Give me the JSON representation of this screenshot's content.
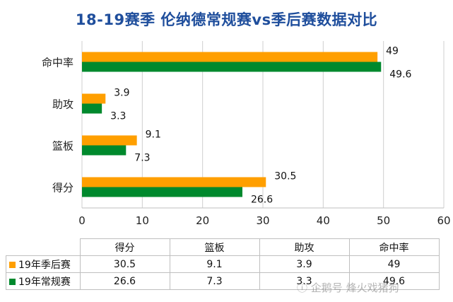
{
  "chart_data": {
    "type": "bar",
    "orientation": "horizontal",
    "title": "18-19赛季 伦纳德常规赛vs季后赛数据对比",
    "categories": [
      "得分",
      "篮板",
      "助攻",
      "命中率"
    ],
    "series": [
      {
        "name": "19年季后赛",
        "color": "#ff9f00",
        "values": [
          30.5,
          9.1,
          3.9,
          49
        ]
      },
      {
        "name": "19年常规赛",
        "color": "#00892d",
        "values": [
          26.6,
          7.3,
          3.3,
          49.6
        ]
      }
    ],
    "value_labels": [
      [
        "30.5",
        "9.1",
        "3.9",
        "49"
      ],
      [
        "26.6",
        "7.3",
        "3.3",
        "49.6"
      ]
    ],
    "xlim": [
      0,
      60
    ],
    "xticks": [
      0,
      10,
      20,
      30,
      40,
      50,
      60
    ],
    "grid": true,
    "legend": "data-table-below"
  },
  "table": {
    "headers": [
      "得分",
      "篮板",
      "助攻",
      "命中率"
    ],
    "rows": [
      {
        "label": "19年季后赛",
        "color": "#ff9f00",
        "cells": [
          "30.5",
          "9.1",
          "3.9",
          "49"
        ]
      },
      {
        "label": "19年常规赛",
        "color": "#00892d",
        "cells": [
          "26.6",
          "7.3",
          "3.3",
          "49.6"
        ]
      }
    ]
  },
  "watermark": "企鹅号 烽火戏猪狗",
  "watermark_icon": "penguin-icon"
}
